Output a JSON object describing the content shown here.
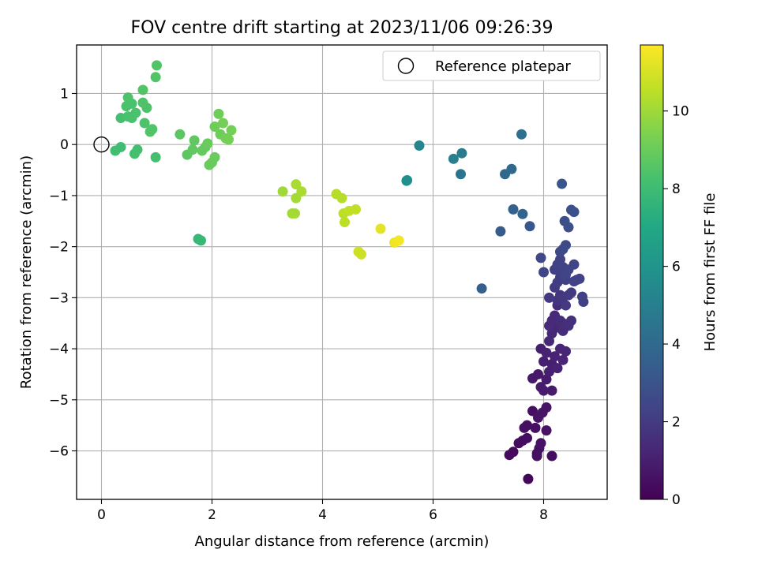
{
  "chart_data": {
    "type": "scatter",
    "title": "FOV centre drift starting at 2023/11/06 09:26:39",
    "xlabel": "Angular distance from reference (arcmin)",
    "ylabel": "Rotation from reference (arcmin)",
    "xlim": [
      -0.45,
      9.15
    ],
    "ylim": [
      -6.95,
      1.95
    ],
    "xticks": [
      0,
      2,
      4,
      6,
      8
    ],
    "xtick_labels": [
      "0",
      "2",
      "4",
      "6",
      "8"
    ],
    "yticks": [
      1,
      0,
      -1,
      -2,
      -3,
      -4,
      -5,
      -6
    ],
    "ytick_labels": [
      "1",
      "0",
      "−1",
      "−2",
      "−3",
      "−4",
      "−5",
      "−6"
    ],
    "grid": true,
    "legend": {
      "placement": "top-right",
      "label": "Reference platepar"
    },
    "reference_point": {
      "x": 0,
      "y": 0
    },
    "colorbar": {
      "label": "Hours from first FF file",
      "colormap": "viridis",
      "range": [
        0,
        11.7
      ],
      "ticks": [
        0,
        2,
        4,
        6,
        8,
        10
      ],
      "tick_labels": [
        "0",
        "2",
        "4",
        "6",
        "8",
        "10"
      ]
    },
    "points": [
      [
        7.72,
        -6.55,
        0.2
      ],
      [
        7.38,
        -6.08,
        0.3
      ],
      [
        7.45,
        -6.02,
        0.3
      ],
      [
        7.55,
        -5.85,
        0.4
      ],
      [
        7.62,
        -5.8,
        0.4
      ],
      [
        7.7,
        -5.75,
        0.4
      ],
      [
        7.65,
        -5.55,
        0.5
      ],
      [
        7.7,
        -5.5,
        0.5
      ],
      [
        7.85,
        -5.55,
        0.5
      ],
      [
        7.92,
        -5.95,
        0.6
      ],
      [
        7.95,
        -5.85,
        0.6
      ],
      [
        7.88,
        -6.05,
        0.5
      ],
      [
        7.88,
        -6.1,
        0.5
      ],
      [
        8.15,
        -6.1,
        0.4
      ],
      [
        8.05,
        -5.6,
        0.6
      ],
      [
        7.8,
        -5.22,
        0.5
      ],
      [
        7.9,
        -5.35,
        0.6
      ],
      [
        7.98,
        -5.25,
        0.6
      ],
      [
        8.05,
        -5.15,
        0.6
      ],
      [
        7.8,
        -4.58,
        0.8
      ],
      [
        7.9,
        -4.5,
        0.8
      ],
      [
        7.95,
        -4.75,
        0.9
      ],
      [
        8.0,
        -4.82,
        0.9
      ],
      [
        8.05,
        -4.6,
        0.9
      ],
      [
        8.15,
        -4.82,
        0.9
      ],
      [
        8.1,
        -4.45,
        1.0
      ],
      [
        8.15,
        -4.3,
        1.0
      ],
      [
        8.0,
        -4.25,
        1.0
      ],
      [
        7.95,
        -4.0,
        1.0
      ],
      [
        8.05,
        -4.08,
        1.1
      ],
      [
        8.2,
        -4.15,
        1.1
      ],
      [
        8.25,
        -4.38,
        1.1
      ],
      [
        8.3,
        -4.0,
        1.2
      ],
      [
        8.35,
        -4.22,
        1.2
      ],
      [
        8.4,
        -4.05,
        1.2
      ],
      [
        8.1,
        -3.85,
        1.3
      ],
      [
        8.15,
        -3.7,
        1.3
      ],
      [
        8.2,
        -3.6,
        1.3
      ],
      [
        8.1,
        -3.55,
        1.4
      ],
      [
        8.15,
        -3.45,
        1.4
      ],
      [
        8.2,
        -3.35,
        1.4
      ],
      [
        8.3,
        -3.45,
        1.5
      ],
      [
        8.25,
        -3.15,
        1.5
      ],
      [
        8.35,
        -3.5,
        1.5
      ],
      [
        8.45,
        -3.55,
        1.6
      ],
      [
        8.5,
        -3.45,
        1.6
      ],
      [
        8.35,
        -3.65,
        1.5
      ],
      [
        8.25,
        -3.05,
        1.8
      ],
      [
        8.3,
        -2.95,
        1.8
      ],
      [
        8.35,
        -3.0,
        1.9
      ],
      [
        8.4,
        -3.15,
        1.9
      ],
      [
        8.45,
        -2.95,
        2.0
      ],
      [
        8.5,
        -2.9,
        2.0
      ],
      [
        8.2,
        -2.8,
        2.0
      ],
      [
        8.25,
        -2.7,
        2.1
      ],
      [
        8.3,
        -2.6,
        2.1
      ],
      [
        8.35,
        -2.55,
        2.2
      ],
      [
        8.4,
        -2.65,
        2.2
      ],
      [
        8.2,
        -2.45,
        2.2
      ],
      [
        8.25,
        -2.35,
        2.3
      ],
      [
        8.3,
        -2.25,
        2.3
      ],
      [
        8.35,
        -2.4,
        2.3
      ],
      [
        8.4,
        -2.55,
        2.4
      ],
      [
        8.1,
        -3.0,
        1.9
      ],
      [
        8.0,
        -2.5,
        2.4
      ],
      [
        7.95,
        -2.22,
        2.5
      ],
      [
        8.3,
        -2.1,
        2.5
      ],
      [
        8.35,
        -2.05,
        2.6
      ],
      [
        8.4,
        -1.97,
        2.6
      ],
      [
        8.55,
        -2.35,
        2.4
      ],
      [
        8.6,
        -2.65,
        2.4
      ],
      [
        8.55,
        -2.68,
        2.3
      ],
      [
        8.7,
        -2.98,
        2.2
      ],
      [
        8.72,
        -3.08,
        2.2
      ],
      [
        8.65,
        -2.63,
        2.3
      ],
      [
        8.45,
        -2.45,
        2.4
      ],
      [
        8.38,
        -1.5,
        2.8
      ],
      [
        8.45,
        -1.62,
        2.8
      ],
      [
        8.5,
        -1.28,
        2.9
      ],
      [
        8.55,
        -1.32,
        2.9
      ],
      [
        8.33,
        -0.77,
        3.1
      ],
      [
        7.75,
        -1.6,
        3.2
      ],
      [
        7.22,
        -1.7,
        3.4
      ],
      [
        6.88,
        -2.82,
        3.5
      ],
      [
        7.45,
        -1.27,
        3.6
      ],
      [
        7.62,
        -1.36,
        3.8
      ],
      [
        7.3,
        -0.58,
        3.9
      ],
      [
        7.42,
        -0.48,
        4.0
      ],
      [
        7.6,
        0.2,
        4.3
      ],
      [
        6.5,
        -0.58,
        4.5
      ],
      [
        6.52,
        -0.17,
        4.8
      ],
      [
        6.37,
        -0.28,
        5.0
      ],
      [
        5.75,
        -0.02,
        5.3
      ],
      [
        5.52,
        -0.71,
        5.8
      ],
      [
        5.53,
        -0.7,
        5.8
      ],
      [
        1.75,
        -1.85,
        7.8
      ],
      [
        1.8,
        -1.88,
        7.8
      ],
      [
        0.35,
        -0.05,
        8.1
      ],
      [
        0.25,
        -0.12,
        8.1
      ],
      [
        0.6,
        -0.18,
        8.2
      ],
      [
        0.65,
        -0.1,
        8.2
      ],
      [
        0.98,
        -0.25,
        8.2
      ],
      [
        0.35,
        0.52,
        8.2
      ],
      [
        0.48,
        0.55,
        8.3
      ],
      [
        0.55,
        0.52,
        8.3
      ],
      [
        0.62,
        0.62,
        8.3
      ],
      [
        0.45,
        0.75,
        8.3
      ],
      [
        0.55,
        0.8,
        8.3
      ],
      [
        0.75,
        0.82,
        8.4
      ],
      [
        0.82,
        0.72,
        8.4
      ],
      [
        0.48,
        0.92,
        8.4
      ],
      [
        0.78,
        0.42,
        8.4
      ],
      [
        0.88,
        0.25,
        8.5
      ],
      [
        0.92,
        0.3,
        8.5
      ],
      [
        0.75,
        1.07,
        8.5
      ],
      [
        0.98,
        1.32,
        8.5
      ],
      [
        1.0,
        1.55,
        8.5
      ],
      [
        1.42,
        0.2,
        8.7
      ],
      [
        1.55,
        -0.2,
        8.7
      ],
      [
        1.65,
        -0.1,
        8.8
      ],
      [
        1.68,
        0.08,
        8.8
      ],
      [
        1.82,
        -0.12,
        8.9
      ],
      [
        1.88,
        -0.05,
        8.9
      ],
      [
        1.92,
        0.02,
        9.0
      ],
      [
        1.95,
        -0.4,
        9.0
      ],
      [
        2.0,
        -0.35,
        9.0
      ],
      [
        2.05,
        -0.25,
        9.0
      ],
      [
        2.05,
        0.35,
        9.1
      ],
      [
        2.12,
        0.6,
        9.1
      ],
      [
        2.15,
        0.2,
        9.1
      ],
      [
        2.2,
        0.42,
        9.2
      ],
      [
        2.25,
        0.12,
        9.2
      ],
      [
        2.3,
        0.1,
        9.2
      ],
      [
        2.35,
        0.28,
        9.2
      ],
      [
        3.28,
        -0.92,
        10.0
      ],
      [
        3.45,
        -1.35,
        10.1
      ],
      [
        3.5,
        -1.35,
        10.1
      ],
      [
        3.52,
        -1.05,
        10.1
      ],
      [
        3.52,
        -0.78,
        10.2
      ],
      [
        3.62,
        -0.92,
        10.2
      ],
      [
        4.25,
        -0.97,
        10.4
      ],
      [
        4.35,
        -1.05,
        10.4
      ],
      [
        4.38,
        -1.35,
        10.5
      ],
      [
        4.4,
        -1.52,
        10.5
      ],
      [
        4.48,
        -1.3,
        10.6
      ],
      [
        4.6,
        -1.27,
        10.6
      ],
      [
        4.65,
        -2.1,
        10.8
      ],
      [
        4.7,
        -2.15,
        10.8
      ],
      [
        5.05,
        -1.65,
        11.2
      ],
      [
        5.3,
        -1.92,
        11.4
      ],
      [
        5.38,
        -1.88,
        11.5
      ]
    ]
  }
}
